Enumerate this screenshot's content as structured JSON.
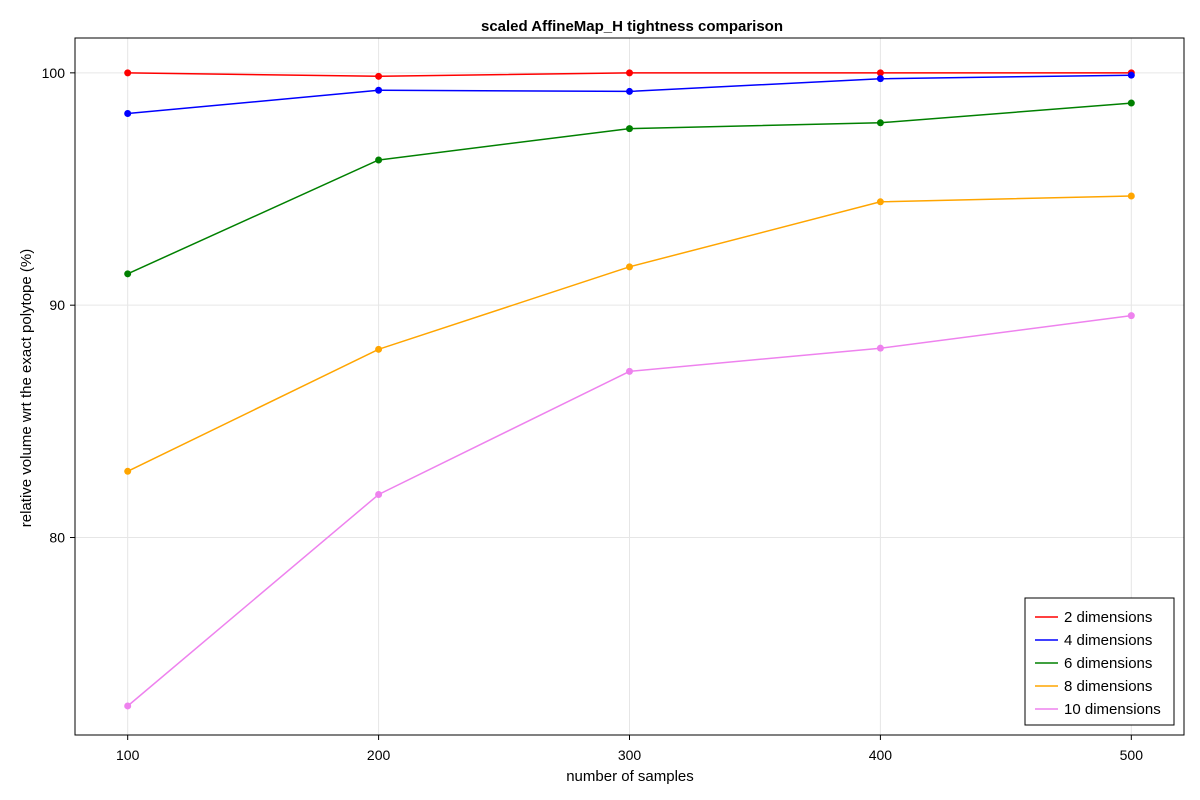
{
  "chart_data": {
    "type": "line",
    "title": "scaled AffineMap_H tightness comparison",
    "xlabel": "number of samples",
    "ylabel": "relative volume wrt the exact polytope (%)",
    "x": [
      100,
      200,
      300,
      400,
      500
    ],
    "xticks": [
      100,
      200,
      300,
      400,
      500
    ],
    "yticks": [
      80,
      90,
      100
    ],
    "xlim": [
      79,
      521
    ],
    "ylim": [
      71.5,
      101.5
    ],
    "grid": true,
    "legend_position": "bottom-right",
    "series": [
      {
        "name": "2 dimensions",
        "color": "#ff0000",
        "values": [
          100.0,
          99.85,
          100.0,
          100.0,
          100.0
        ]
      },
      {
        "name": "4 dimensions",
        "color": "#0000ff",
        "values": [
          98.25,
          99.25,
          99.2,
          99.75,
          99.9
        ]
      },
      {
        "name": "6 dimensions",
        "color": "#008000",
        "values": [
          91.35,
          96.25,
          97.6,
          97.85,
          98.7
        ]
      },
      {
        "name": "8 dimensions",
        "color": "#ffa500",
        "values": [
          82.85,
          88.1,
          91.65,
          94.45,
          94.7
        ]
      },
      {
        "name": "10 dimensions",
        "color": "#ee82ee",
        "values": [
          72.75,
          81.85,
          87.15,
          88.15,
          89.55
        ]
      }
    ]
  }
}
